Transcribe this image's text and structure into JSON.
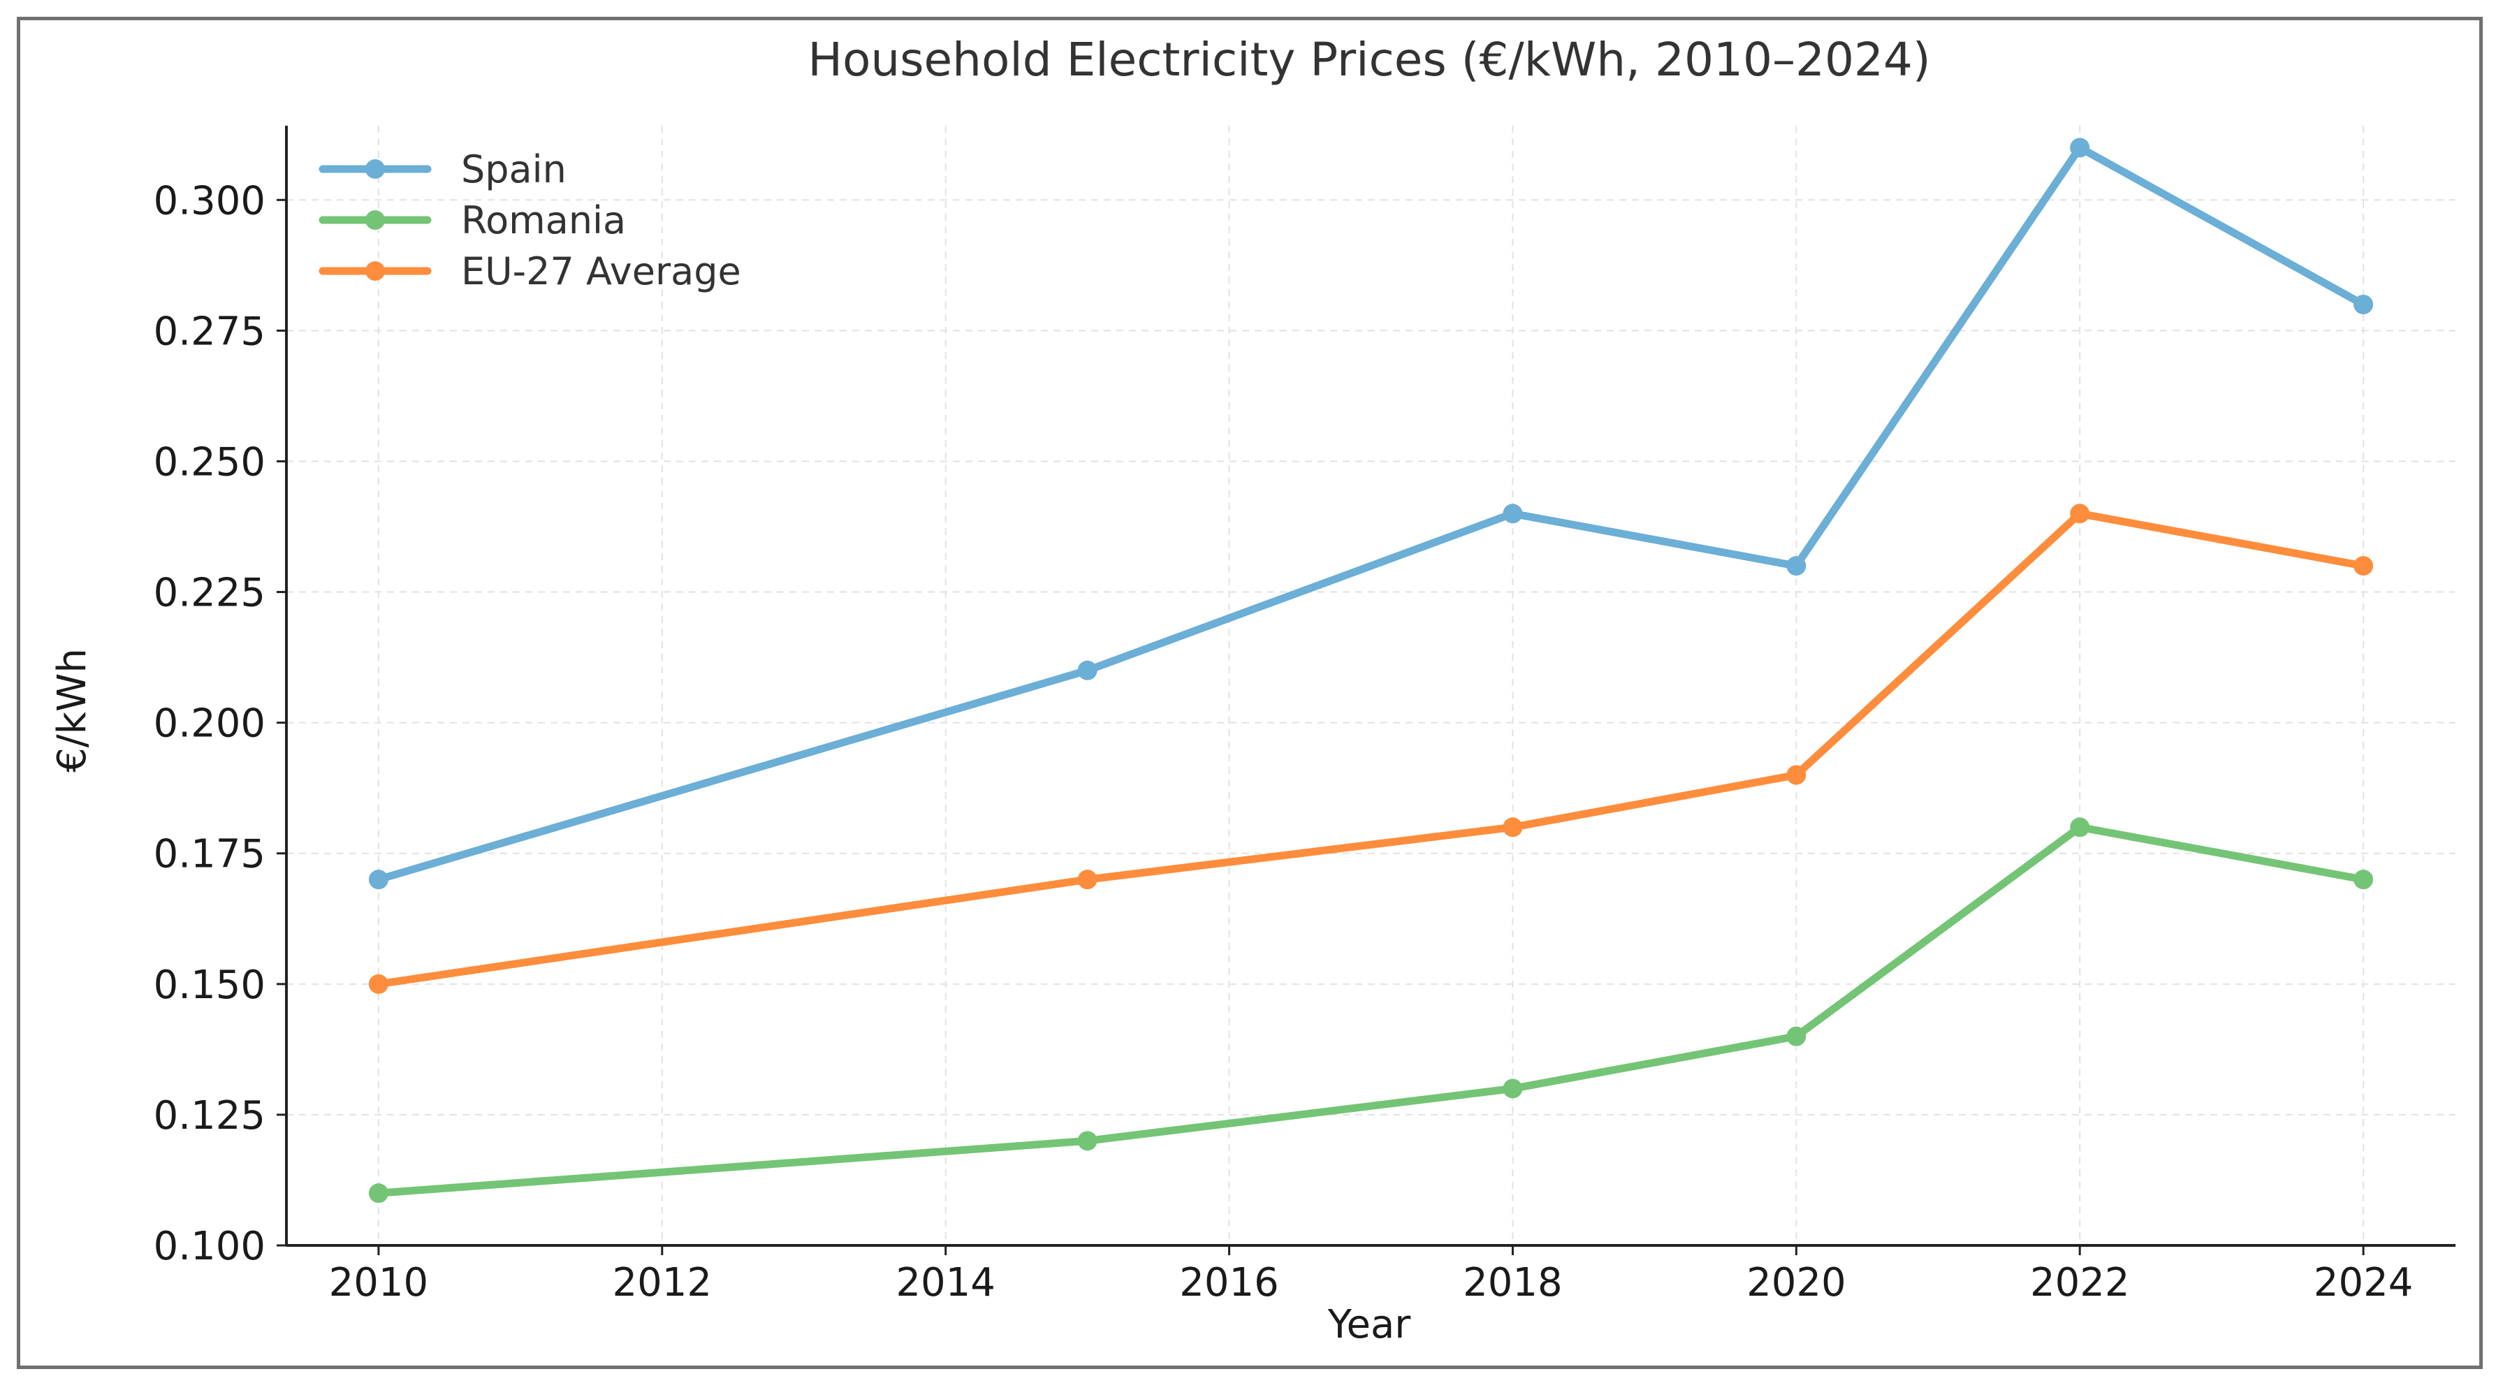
{
  "chart_data": {
    "type": "line",
    "title": "Household Electricity Prices (€/kWh, 2010–2024)",
    "xlabel": "Year",
    "ylabel": "€/kWh",
    "xlim": [
      2009.35,
      2024.65
    ],
    "ylim": [
      0.1,
      0.3142
    ],
    "x_ticks": [
      2010,
      2012,
      2014,
      2016,
      2018,
      2020,
      2022,
      2024
    ],
    "x_tick_labels": [
      "2010",
      "2012",
      "2014",
      "2016",
      "2018",
      "2020",
      "2022",
      "2024"
    ],
    "y_ticks": [
      0.1,
      0.125,
      0.15,
      0.175,
      0.2,
      0.225,
      0.25,
      0.275,
      0.3
    ],
    "y_tick_labels": [
      "0.100",
      "0.125",
      "0.150",
      "0.175",
      "0.200",
      "0.225",
      "0.250",
      "0.275",
      "0.300"
    ],
    "grid": true,
    "legend_position": "top-left",
    "x": [
      2010,
      2015,
      2018,
      2020,
      2022,
      2024
    ],
    "series": [
      {
        "name": "Spain",
        "color": "#6baed6",
        "values": [
          0.17,
          0.21,
          0.24,
          0.23,
          0.31,
          0.28
        ]
      },
      {
        "name": "Romania",
        "color": "#74c476",
        "values": [
          0.11,
          0.12,
          0.13,
          0.14,
          0.18,
          0.17
        ]
      },
      {
        "name": "EU-27 Average",
        "color": "#fd8d3c",
        "values": [
          0.15,
          0.17,
          0.18,
          0.19,
          0.24,
          0.23
        ]
      }
    ]
  }
}
